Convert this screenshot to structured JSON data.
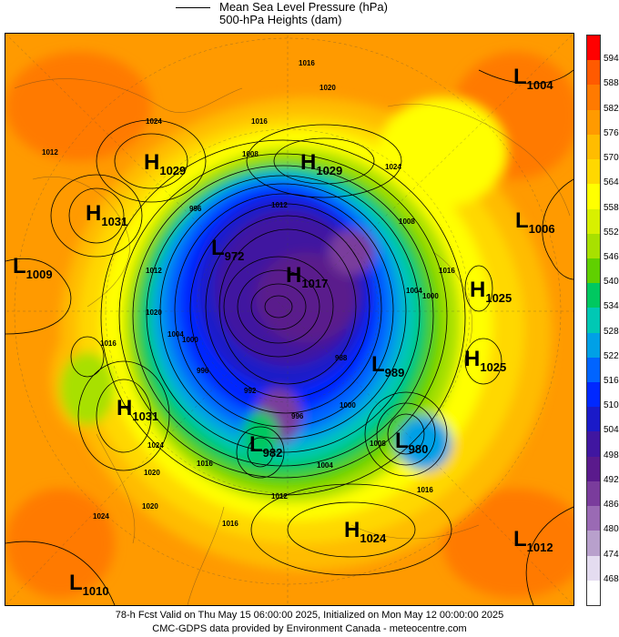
{
  "legend": {
    "mslp_label": "Mean Sea Level Pressure (hPa)",
    "heights_label": "500-hPa Heights (dam)"
  },
  "colorbar": {
    "ticks": [
      "594",
      "588",
      "582",
      "576",
      "570",
      "564",
      "558",
      "552",
      "546",
      "540",
      "534",
      "528",
      "522",
      "516",
      "510",
      "504",
      "498",
      "492",
      "486",
      "480",
      "474",
      "468"
    ],
    "colors": [
      "#ff0000",
      "#ff5a00",
      "#ff7a00",
      "#ff9a00",
      "#ffbc00",
      "#ffd800",
      "#ffff00",
      "#d8f000",
      "#a8e000",
      "#60d000",
      "#00c860",
      "#00c8b4",
      "#00a0e6",
      "#0064ff",
      "#0028ff",
      "#1a1ac8",
      "#4016a0",
      "#5a1a8c",
      "#7a3c9c",
      "#9a6ab4",
      "#b8a0cc",
      "#e4dcf0",
      "#ffffff"
    ]
  },
  "systems": [
    {
      "type": "L",
      "value": "1004",
      "label": "L",
      "text": "1004"
    },
    {
      "type": "H",
      "value": "1029",
      "label": "H",
      "text": "1029"
    },
    {
      "type": "H",
      "value": "1029",
      "label": "H",
      "text": "1029"
    },
    {
      "type": "H",
      "value": "1031",
      "label": "H",
      "text": "1031"
    },
    {
      "type": "L",
      "value": "1009",
      "label": "L",
      "text": "1009"
    },
    {
      "type": "L",
      "value": "1006",
      "label": "L",
      "text": "1006"
    },
    {
      "type": "H",
      "value": "1025",
      "label": "H",
      "text": "1025"
    },
    {
      "type": "H",
      "value": "1025",
      "label": "H",
      "text": "1025"
    },
    {
      "type": "H",
      "value": "1031",
      "label": "H",
      "text": "1031"
    },
    {
      "type": "L",
      "value": "989",
      "label": "L",
      "text": "989"
    },
    {
      "type": "L",
      "value": "980",
      "label": "L",
      "text": "980"
    },
    {
      "type": "L",
      "value": "982",
      "label": "L",
      "text": "982"
    },
    {
      "type": "H",
      "value": "1024",
      "label": "H",
      "text": "1024"
    },
    {
      "type": "L",
      "value": "1012",
      "label": "L",
      "text": "1012"
    },
    {
      "type": "L",
      "value": "1010",
      "label": "L",
      "text": "1010"
    },
    {
      "type": "H",
      "value": "1017",
      "label": "H",
      "text": "1017"
    },
    {
      "type": "L",
      "value": "972",
      "label": "L",
      "text": "972"
    }
  ],
  "isobar_labels": [
    "1016",
    "1020",
    "1024",
    "1016",
    "1008",
    "1012",
    "1024",
    "1016",
    "1012",
    "1020",
    "1016",
    "1024",
    "1008",
    "1000",
    "996",
    "1016",
    "1012",
    "1020",
    "1024",
    "1016",
    "1004",
    "1016",
    "1020",
    "1004",
    "1000",
    "1008",
    "1004",
    "1000",
    "996",
    "992",
    "988",
    "996",
    "1012"
  ],
  "footer": {
    "line1": "78-h Fcst Valid on Thu May 15 06:00:00 2025, Initialized on Mon May 12 00:00:00 2025",
    "line2": "CMC-GDPS data provided by Environment Canada - meteocentre.com"
  }
}
